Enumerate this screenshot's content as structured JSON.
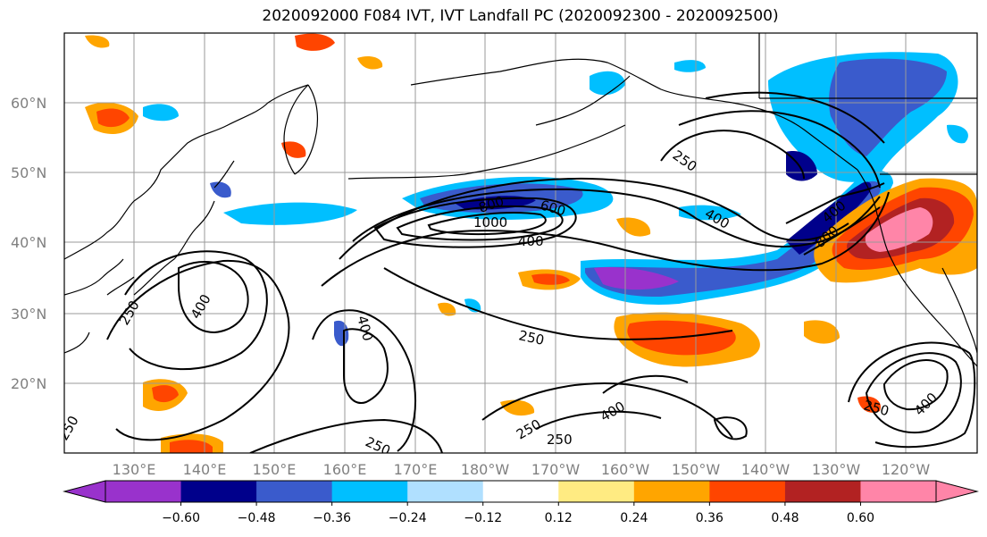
{
  "title": "2020092000 F084 IVT, IVT Landfall PC (2020092300 - 2020092500)",
  "lat_labels": [
    "60°N",
    "50°N",
    "40°N",
    "30°N",
    "20°N"
  ],
  "lon_labels": [
    "130°E",
    "140°E",
    "150°E",
    "160°E",
    "170°E",
    "180°W",
    "170°W",
    "160°W",
    "150°W",
    "140°W",
    "130°W",
    "120°W"
  ],
  "colorbar": {
    "ticks": [
      "−0.60",
      "−0.48",
      "−0.36",
      "−0.24",
      "−0.12",
      "0.12",
      "0.24",
      "0.36",
      "0.48",
      "0.60"
    ],
    "colors": [
      "#9932CC",
      "#00008B",
      "#3A5BCC",
      "#00BFFF",
      "#B0E0FF",
      "#FFFFFF",
      "#FFEB82",
      "#FFA500",
      "#FF4500",
      "#B22222",
      "#FF85A8"
    ]
  },
  "contour_labels": [
    "1000",
    "800",
    "600",
    "400",
    "250",
    "400",
    "250",
    "400",
    "400",
    "250",
    "250",
    "250",
    "800",
    "400",
    "250",
    "400",
    "400",
    "250",
    "250"
  ]
}
